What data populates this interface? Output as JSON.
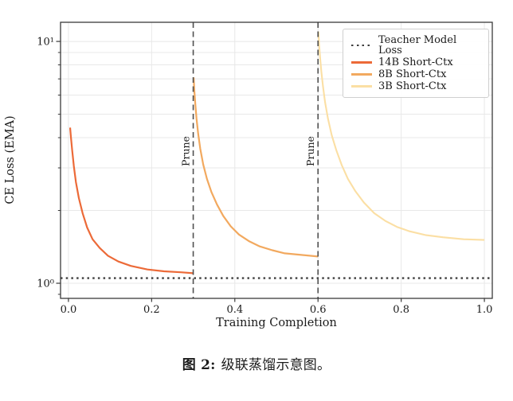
{
  "figure": {
    "caption_label": "图 2:",
    "caption_text": "级联蒸馏示意图。"
  },
  "colors": {
    "series_14b": "#ec6a38",
    "series_8b": "#f2a95f",
    "series_3b": "#fbdfa4",
    "teacher": "#3d3d3d",
    "prune_line": "#4f4f4f",
    "spine": "#3a3a3a",
    "grid": "#e8e8e8",
    "text": "#1b1b1b"
  },
  "chart_data": {
    "type": "line",
    "title": "",
    "xlabel": "Training Completion",
    "ylabel": "CE Loss (EMA)",
    "x_ticks": [
      0.0,
      0.2,
      0.4,
      0.6,
      0.8,
      1.0
    ],
    "x_tick_labels": [
      "0.0",
      "0.2",
      "0.4",
      "0.6",
      "0.8",
      "1.0"
    ],
    "y_scale": "log",
    "y_major_ticks": [
      1,
      10
    ],
    "y_major_tick_labels": [
      "10⁰",
      "10¹"
    ],
    "y_minor_ticks": [
      0.9,
      2,
      3,
      4,
      5,
      6,
      7,
      8,
      9
    ],
    "y_grid_values": [
      1,
      2,
      3,
      4,
      5,
      6,
      7,
      8,
      9,
      10
    ],
    "xlim": [
      -0.019,
      1.019
    ],
    "ylim": [
      0.866,
      12.0
    ],
    "grid": "on",
    "legend_position": "upper right",
    "teacher_loss": 1.05,
    "prune_events": [
      {
        "x": 0.3,
        "label": "Prune"
      },
      {
        "x": 0.6,
        "label": "Prune"
      }
    ],
    "series": [
      {
        "name": "Teacher Model Loss",
        "style": "dotted",
        "color": "#3d3d3d",
        "width": 2.4,
        "points": [
          [
            -0.019,
            1.05
          ],
          [
            1.019,
            1.05
          ]
        ]
      },
      {
        "name": "14B Short-Ctx",
        "style": "solid",
        "color": "#ec6a38",
        "width": 2.2,
        "points": [
          [
            0.004,
            4.4
          ],
          [
            0.006,
            4.0
          ],
          [
            0.009,
            3.55
          ],
          [
            0.013,
            3.05
          ],
          [
            0.018,
            2.62
          ],
          [
            0.025,
            2.25
          ],
          [
            0.034,
            1.95
          ],
          [
            0.045,
            1.7
          ],
          [
            0.058,
            1.52
          ],
          [
            0.075,
            1.4
          ],
          [
            0.095,
            1.3
          ],
          [
            0.12,
            1.23
          ],
          [
            0.15,
            1.18
          ],
          [
            0.19,
            1.14
          ],
          [
            0.23,
            1.12
          ],
          [
            0.27,
            1.11
          ],
          [
            0.3,
            1.1
          ]
        ]
      },
      {
        "name": "8B Short-Ctx",
        "style": "solid",
        "color": "#f2a95f",
        "width": 2.2,
        "points": [
          [
            0.301,
            7.1
          ],
          [
            0.3025,
            6.3
          ],
          [
            0.305,
            5.5
          ],
          [
            0.308,
            4.8
          ],
          [
            0.312,
            4.15
          ],
          [
            0.317,
            3.6
          ],
          [
            0.324,
            3.1
          ],
          [
            0.333,
            2.7
          ],
          [
            0.344,
            2.38
          ],
          [
            0.357,
            2.12
          ],
          [
            0.372,
            1.9
          ],
          [
            0.39,
            1.72
          ],
          [
            0.41,
            1.59
          ],
          [
            0.435,
            1.49
          ],
          [
            0.46,
            1.42
          ],
          [
            0.49,
            1.37
          ],
          [
            0.52,
            1.33
          ],
          [
            0.56,
            1.31
          ],
          [
            0.6,
            1.29
          ]
        ]
      },
      {
        "name": "3B Short-Ctx",
        "style": "solid",
        "color": "#fbdfa4",
        "width": 2.1,
        "points": [
          [
            0.601,
            11.0
          ],
          [
            0.6025,
            9.8
          ],
          [
            0.605,
            8.6
          ],
          [
            0.608,
            7.5
          ],
          [
            0.612,
            6.5
          ],
          [
            0.617,
            5.6
          ],
          [
            0.624,
            4.8
          ],
          [
            0.633,
            4.1
          ],
          [
            0.644,
            3.55
          ],
          [
            0.657,
            3.08
          ],
          [
            0.672,
            2.7
          ],
          [
            0.69,
            2.4
          ],
          [
            0.71,
            2.16
          ],
          [
            0.735,
            1.95
          ],
          [
            0.762,
            1.81
          ],
          [
            0.79,
            1.71
          ],
          [
            0.82,
            1.64
          ],
          [
            0.86,
            1.58
          ],
          [
            0.9,
            1.55
          ],
          [
            0.95,
            1.52
          ],
          [
            1.0,
            1.51
          ]
        ]
      }
    ]
  }
}
